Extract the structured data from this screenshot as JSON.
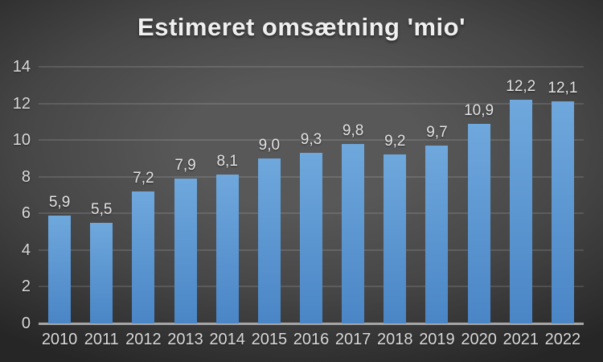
{
  "chart_data": {
    "type": "bar",
    "title": "Estimeret omsætning 'mio'",
    "categories": [
      "2010",
      "2011",
      "2012",
      "2013",
      "2014",
      "2015",
      "2016",
      "2017",
      "2018",
      "2019",
      "2020",
      "2021",
      "2022"
    ],
    "values": [
      5.9,
      5.5,
      7.2,
      7.9,
      8.1,
      9.0,
      9.3,
      9.8,
      9.2,
      9.7,
      10.9,
      12.2,
      12.1
    ],
    "value_labels": [
      "5,9",
      "5,5",
      "7,2",
      "7,9",
      "8,1",
      "9,0",
      "9,3",
      "9,8",
      "9,2",
      "9,7",
      "10,9",
      "12,2",
      "12,1"
    ],
    "xlabel": "",
    "ylabel": "",
    "ylim": [
      0,
      14
    ],
    "y_ticks": [
      0,
      2,
      4,
      6,
      8,
      10,
      12,
      14
    ],
    "grid": true,
    "legend": "none",
    "colors": {
      "bar_gradient_top": "#6FA8DC",
      "bar_gradient_bottom": "#4A85C6",
      "background_center": "#585858",
      "background_mid": "#464646",
      "background_edge": "#262626",
      "gridline": "rgba(255,255,255,0.12)",
      "axis_line": "#A6A6A6",
      "tick_text": "#D9D9D9",
      "value_text": "#E3E3E3",
      "title_text": "#F0F0F0"
    }
  }
}
